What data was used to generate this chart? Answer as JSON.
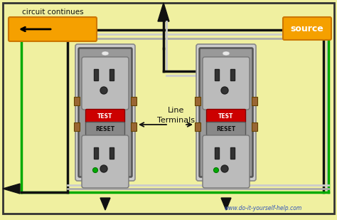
{
  "bg_color": "#f0f0a0",
  "outlet_body": "#999999",
  "outlet_face": "#bbbbbb",
  "outlet_face_dark": "#aaaaaa",
  "wire_black": "#111111",
  "wire_white": "#cccccc",
  "wire_green": "#00aa00",
  "source_box_color": "#f5a000",
  "source_text": "source",
  "circuit_text": "circuit continues",
  "line_term_text": "Line\nTerminals",
  "watermark": "www.do-it-yourself-help.com",
  "test_color": "#cc0000",
  "reset_color": "#888888",
  "terminal_color": "#996633",
  "mount_color": "#cccccc"
}
